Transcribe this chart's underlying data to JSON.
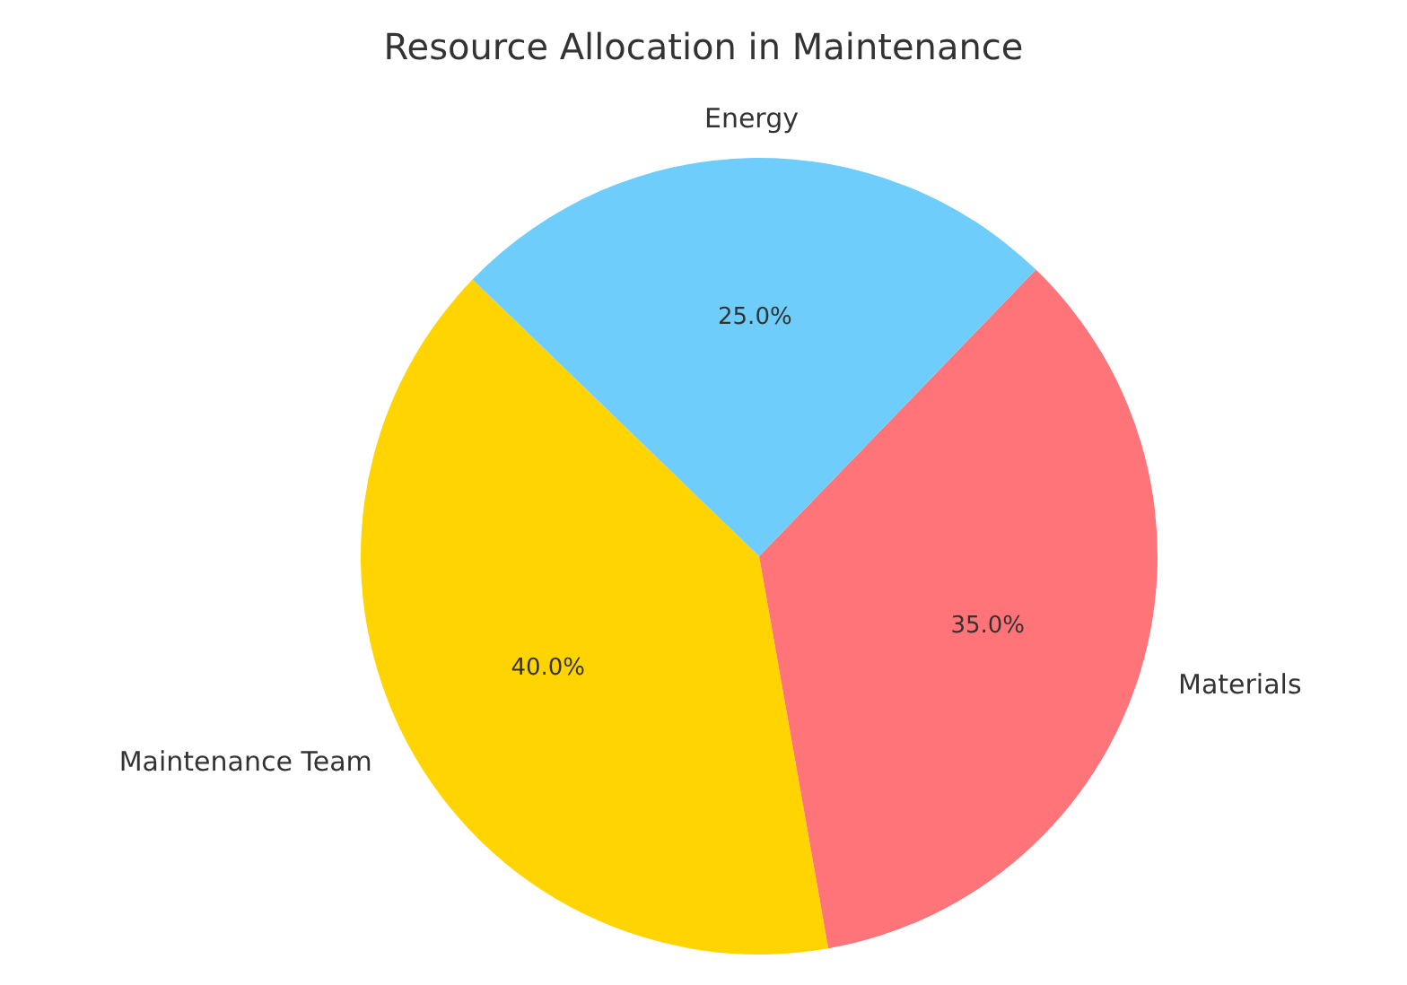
{
  "chart_data": {
    "type": "pie",
    "title": "Resource Allocation in Maintenance",
    "categories": [
      "Maintenance Team",
      "Materials",
      "Energy"
    ],
    "values": [
      40,
      35,
      25
    ],
    "value_labels": [
      "40.0%",
      "35.0%",
      "25.0%"
    ],
    "colors": [
      "#ffd400",
      "#ff7479",
      "#6ecdfb"
    ]
  }
}
